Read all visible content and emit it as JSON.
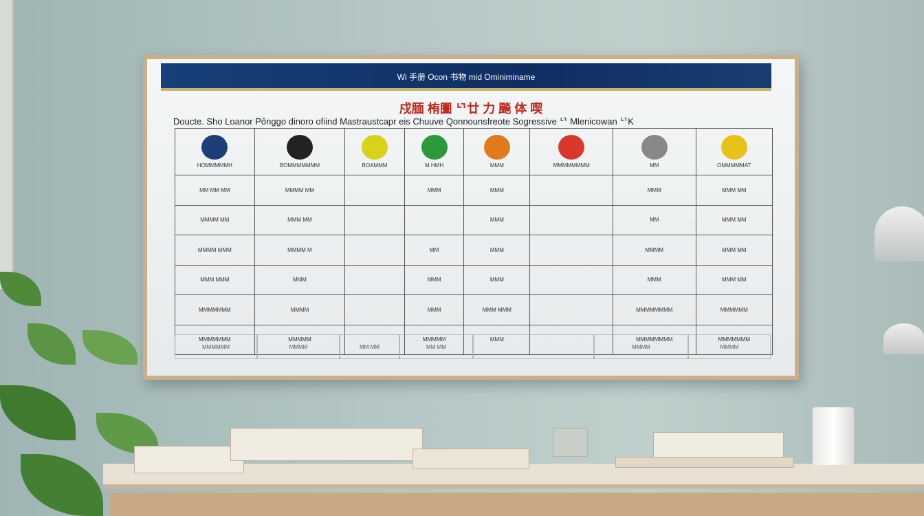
{
  "banner": "Wi 手册 Ocon 书物 mid Ominiminame",
  "title": "戍腼 栯圕 ᄓ廿 力 飈 体 喫",
  "subtitle": "Doucte. Sho  Loanor Pônggo dinoro ofiind Mastraustcapr eis  Chuuve  Qonnounsfreote  Sogressive ᄓ  Mlenicowan ᄓK",
  "columns": [
    {
      "logo_color": "#1d3f77",
      "label": "HOMMMMMH"
    },
    {
      "logo_color": "#222222",
      "label": "BOMMMMMMM"
    },
    {
      "logo_color": "#d8d21a",
      "label": "BOAMMM"
    },
    {
      "logo_color": "#2c9a3a",
      "label": "M HMH"
    },
    {
      "logo_color": "#e07a1a",
      "label": "MMM"
    },
    {
      "logo_color": "#d8392a",
      "label": "MMMMMMMM"
    },
    {
      "logo_color": "#888888",
      "label": "MM"
    },
    {
      "logo_color": "#e8c21a",
      "label": "OMMMMMAT"
    }
  ],
  "rows": [
    [
      "MM MM MM",
      "MMMM MM",
      "",
      "MMM",
      "MMM",
      "",
      "MMM",
      "MMM MM"
    ],
    [
      "MMMM MM",
      "MMM MM",
      "",
      "",
      "MMM",
      "",
      "MM",
      "MMM MM"
    ],
    [
      "MMMM MMM",
      "MMMM M",
      "",
      "MM",
      "MMM",
      "",
      "MMMM",
      "MMM MM"
    ],
    [
      "MMM MMM",
      "MMM",
      "",
      "MMM",
      "MMM",
      "",
      "MMM",
      "MMM MM"
    ],
    [
      "MMMMMMM",
      "MMMM",
      "",
      "MMM",
      "MMM MMM",
      "",
      "MMMMMMMM",
      "MMMMMM"
    ],
    [
      "MMMMMMM",
      "MMMMM",
      "",
      "MMMMM",
      "MMM",
      "",
      "MMMMMMMM",
      "MMMMMMM"
    ]
  ],
  "footer": [
    "MMMMMM",
    "MMMM",
    "MM MM",
    "MM MM",
    "",
    "MMMMM",
    "MMMM",
    "MMMM"
  ]
}
